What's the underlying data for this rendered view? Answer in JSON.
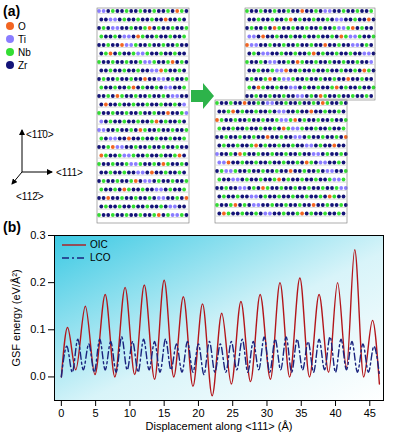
{
  "panel_a": {
    "label": "(a)",
    "legend": [
      {
        "name": "O",
        "color": "#f26522"
      },
      {
        "name": "Ti",
        "color": "#8a7dff"
      },
      {
        "name": "Nb",
        "color": "#33dd33"
      },
      {
        "name": "Zr",
        "color": "#141478"
      }
    ],
    "directions": [
      "<11̄0>",
      "<111>",
      "<112̄>"
    ]
  },
  "chart_data": {
    "type": "line",
    "panel_label": "(b)",
    "x_label": "Displacement along <111> (Å)",
    "y_label": "GSF energy (eV/Å²)",
    "xlim": [
      -1,
      47
    ],
    "xticks": [
      0,
      5,
      10,
      15,
      20,
      25,
      30,
      35,
      40,
      45
    ],
    "ylim": [
      -0.05,
      0.3
    ],
    "yticks": [
      {
        "value": 0,
        "label": "0.0"
      },
      {
        "value": 0.1,
        "label": "0.1"
      },
      {
        "value": 0.2,
        "label": "0.2"
      },
      {
        "value": 0.3,
        "label": "0.3"
      }
    ],
    "grid": false,
    "legend": "top-left",
    "series": [
      {
        "name": "OIC",
        "color": "#b3161b",
        "line_style": "solid",
        "x": [
          0,
          0.9,
          2.1,
          3.5,
          4.9,
          6.4,
          7.8,
          9.3,
          10.7,
          12.1,
          13.6,
          15.0,
          16.4,
          17.8,
          19.2,
          20.6,
          22.0,
          23.4,
          24.8,
          26.2,
          27.6,
          29.0,
          30.5,
          31.9,
          33.3,
          34.8,
          36.2,
          37.6,
          39.0,
          40.3,
          41.6,
          42.8,
          44.1,
          45.4,
          46.4
        ],
        "values": [
          0,
          0.105,
          0.015,
          0.15,
          0.005,
          0.175,
          0.0,
          0.19,
          0.005,
          0.195,
          -0.005,
          0.205,
          0.0,
          0.17,
          -0.02,
          0.155,
          -0.04,
          0.135,
          -0.015,
          0.16,
          -0.01,
          0.175,
          -0.005,
          0.2,
          0.0,
          0.21,
          0.0,
          0.175,
          0.01,
          0.2,
          0.02,
          0.27,
          0.0,
          0.12,
          -0.015
        ]
      },
      {
        "name": "LCO",
        "color": "#1a237e",
        "line_style": "dashdot",
        "x": [
          0,
          0.8,
          1.6,
          2.4,
          3.2,
          4.0,
          4.8,
          5.6,
          6.4,
          7.2,
          8.0,
          8.8,
          9.6,
          10.4,
          11.2,
          12.0,
          12.8,
          13.6,
          14.4,
          15.2,
          16.0,
          16.8,
          17.6,
          18.4,
          19.2,
          20.0,
          20.8,
          21.6,
          22.4,
          23.2,
          24.0,
          24.8,
          25.6,
          26.4,
          27.2,
          28.0,
          28.8,
          29.6,
          30.4,
          31.2,
          32.0,
          32.8,
          33.6,
          34.4,
          35.2,
          36.0,
          36.8,
          37.6,
          38.4,
          39.2,
          40.0,
          40.8,
          41.6,
          42.4,
          43.2,
          44.0,
          44.8,
          45.6,
          46.4
        ],
        "values": [
          0,
          0.065,
          0.01,
          0.08,
          0.015,
          0.07,
          0.01,
          0.08,
          0.015,
          0.075,
          0.01,
          0.085,
          0.015,
          0.075,
          0.01,
          0.08,
          0.015,
          0.075,
          0.01,
          0.08,
          0.015,
          0.07,
          0.01,
          0.075,
          0.01,
          0.07,
          0.005,
          0.075,
          0.01,
          0.07,
          0.01,
          0.075,
          0.015,
          0.08,
          0.01,
          0.075,
          0.015,
          0.085,
          0.01,
          0.08,
          0.015,
          0.085,
          0.01,
          0.08,
          0.015,
          0.075,
          0.01,
          0.08,
          0.015,
          0.085,
          0.01,
          0.08,
          0.015,
          0.075,
          0.01,
          0.07,
          0.01,
          0.065,
          0.005
        ]
      }
    ]
  }
}
